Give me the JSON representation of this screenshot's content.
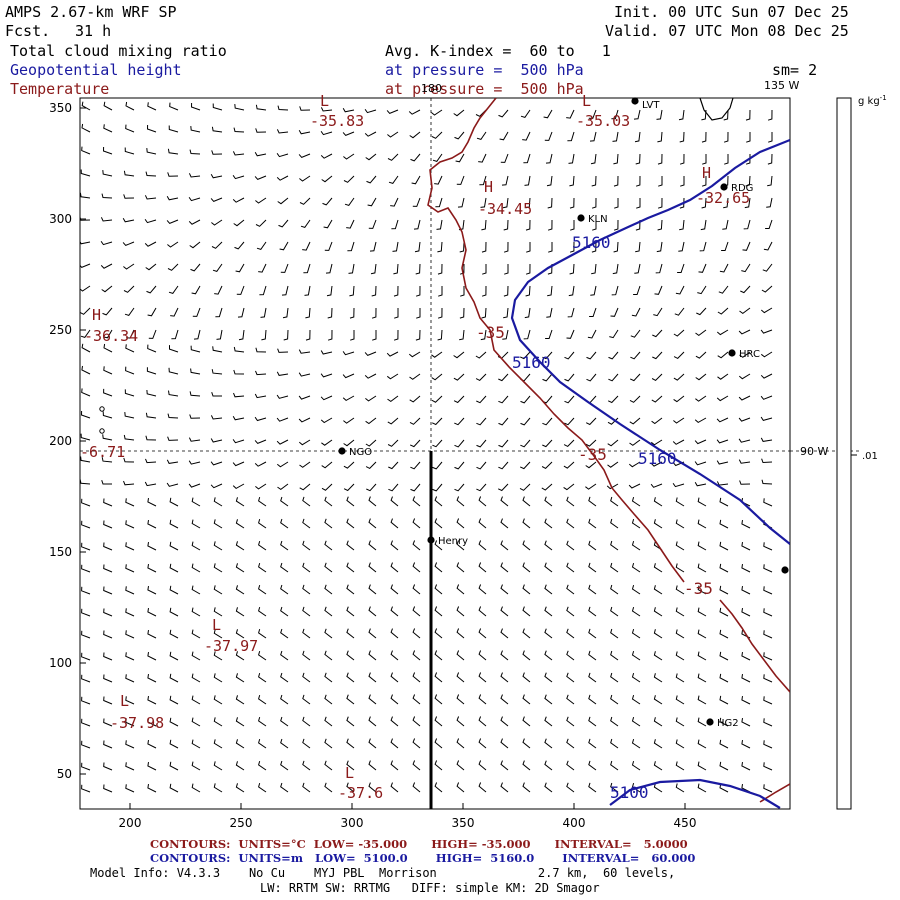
{
  "header": {
    "model": "AMPS 2.67-km WRF SP",
    "fcst_label": "Fcst.",
    "fcst_value": "31 h",
    "init": "Init. 00 UTC Sun 07 Dec 25",
    "valid": "Valid. 07 UTC Mon 08 Dec 25",
    "field1": "Total cloud mixing ratio",
    "field2": "Geopotential height",
    "field3": "Temperature",
    "avg": "Avg. K-index =  60 to   1",
    "pressure2": "at pressure =  500 hPa",
    "pressure3": "at pressure =  500 hPa",
    "sm": "sm= 2"
  },
  "colors": {
    "geopotential": "#1a1aa0",
    "temperature": "#8b1a1a",
    "barbs": "#000000"
  },
  "axes": {
    "x_ticks": [
      "200",
      "250",
      "300",
      "350",
      "400",
      "450"
    ],
    "y_ticks": [
      "350",
      "300",
      "250",
      "200",
      "150",
      "100",
      "50"
    ],
    "lon_top": "180",
    "lon_top_right": "135 W",
    "lon_right": "90 W"
  },
  "colorbar": {
    "unit": "g kg",
    "unit_sup": "-1",
    "tick": ".01"
  },
  "stations": [
    {
      "name": "KLN"
    },
    {
      "name": "RDG"
    },
    {
      "name": "HRC"
    },
    {
      "name": "NGO"
    },
    {
      "name": "Henry"
    },
    {
      "name": "HG2"
    },
    {
      "name": "LVT"
    }
  ],
  "temp_extrema": [
    {
      "sym": "L",
      "value": "-35.83"
    },
    {
      "sym": "L",
      "value": "-35.03"
    },
    {
      "sym": "H",
      "value": "-34.45"
    },
    {
      "sym": "H",
      "value": "-32.65"
    },
    {
      "sym": "H",
      "value": "-36.34"
    },
    {
      "sym": "L",
      "value": "-37.97"
    },
    {
      "sym": "L",
      "value": "-37.98"
    },
    {
      "sym": "L",
      "value": "-37.6"
    },
    {
      "sym": "",
      "value": "-6.71"
    }
  ],
  "contour_labels": {
    "temp": [
      "-35",
      "-35",
      "-35"
    ],
    "height": [
      "5160",
      "5160",
      "5160",
      "5100"
    ]
  },
  "footer": {
    "line1": "CONTOURS:  UNITS=°C  LOW= -35.000      HIGH= -35.000      INTERVAL=   5.0000",
    "line2": "CONTOURS:  UNITS=m   LOW=  5100.0       HIGH=  5160.0       INTERVAL=   60.000",
    "model_info": "Model Info: V4.3.3    No Cu    MYJ PBL  Morrison              2.7 km,  60 levels,",
    "model_info2": "LW: RRTM SW: RRTMG   DIFF: simple KM: 2D Smagor"
  }
}
